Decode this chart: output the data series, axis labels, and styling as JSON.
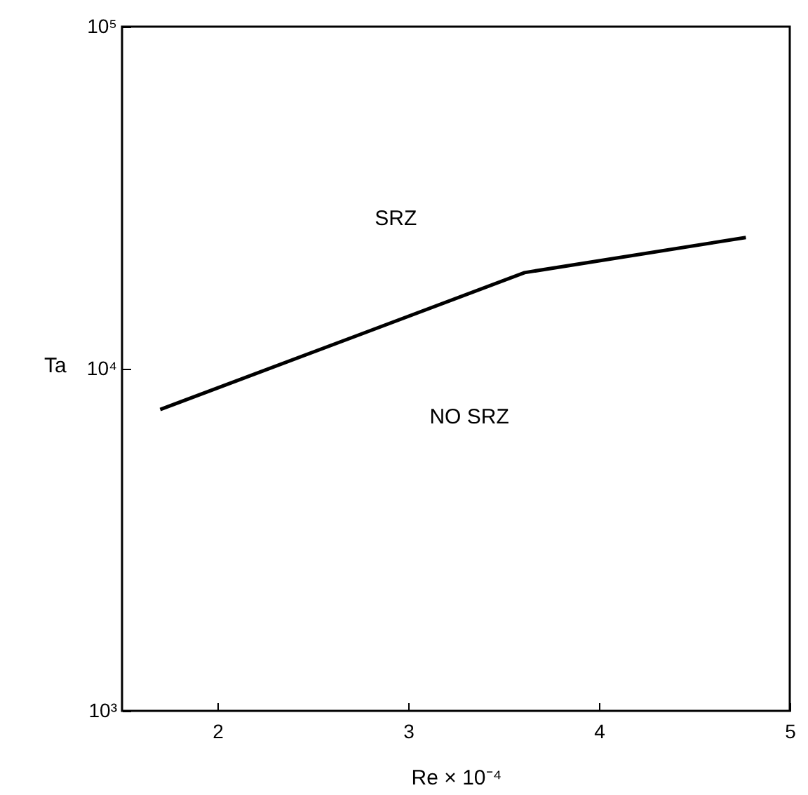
{
  "chart_data": {
    "type": "line",
    "xlabel": "Re × 10⁻⁴",
    "ylabel": "Ta",
    "x": [
      1.7,
      3.61,
      4.77
    ],
    "series": [
      {
        "color": "#000000",
        "values": [
          7600,
          19100,
          24200
        ]
      }
    ],
    "xlim": [
      1.5,
      5
    ],
    "xticks": [
      2,
      3,
      4,
      5
    ],
    "ylim": [
      1000,
      100000
    ],
    "yticks": [
      {
        "value": 1000,
        "label": "10³"
      },
      {
        "value": 10000,
        "label": "10⁴"
      },
      {
        "value": 100000,
        "label": "10⁵"
      }
    ],
    "log": "y",
    "grid": false,
    "marker": "none",
    "line_style": "solid",
    "annotations": [
      "SRZ",
      "NO SRZ"
    ]
  }
}
